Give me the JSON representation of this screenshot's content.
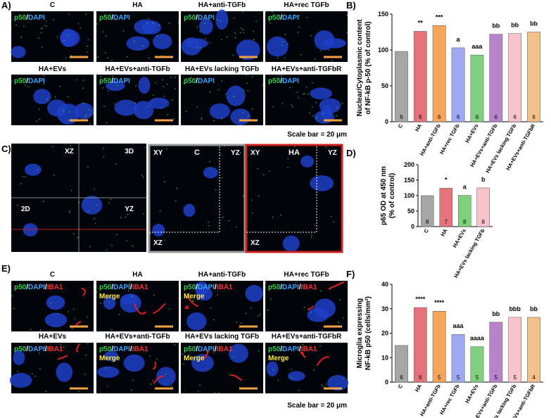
{
  "panels": {
    "a": "A)",
    "b": "B)",
    "c": "C)",
    "d": "D)",
    "e": "E)",
    "f": "F)"
  },
  "panel_a": {
    "titles": [
      "C",
      "HA",
      "HA+anti-TGFb",
      "HA+rec TGFb",
      "HA+EVs",
      "HA+EVs+anti-TGFb",
      "HA+EVs lacking TGFb",
      "HA+EVs+anti-TGFbR"
    ],
    "stain_parts": [
      {
        "text": "p50",
        "color": "#2fd24a"
      },
      {
        "text": "/",
        "color": "#ffffff"
      },
      {
        "text": "DAPI",
        "color": "#39a7ff"
      }
    ],
    "scale_bar": "Scale bar = 20 μm"
  },
  "panel_c": {
    "composite_labels": [
      "XZ",
      "3D",
      "2D",
      "YZ"
    ],
    "titles": [
      "C",
      "HA"
    ],
    "view_labels": [
      "XY",
      "YZ",
      "XZ"
    ]
  },
  "panel_e": {
    "titles": [
      "C",
      "HA",
      "HA+anti-TGFb",
      "HA+rec TGFb",
      "HA+EVs",
      "HA+EVs+anti-TGFb",
      "HA+EVs lacking TGFb",
      "HA+EVs+anti-TGFbR"
    ],
    "stain_parts": [
      {
        "text": "p50",
        "color": "#2fd24a"
      },
      {
        "text": "/",
        "color": "#ffffff"
      },
      {
        "text": "DAPI",
        "color": "#39a7ff"
      },
      {
        "text": "/",
        "color": "#ffffff"
      },
      {
        "text": "IBA1",
        "color": "#ff3030"
      }
    ],
    "merge": "Merge",
    "scale_bar": "Scale bar = 20 μm"
  },
  "chart_data": [
    {
      "type": "bar",
      "ylabel": [
        "Nuclear/Cytoplasmic content",
        "of NF-kB p-50 (% of control)"
      ],
      "categories": [
        "C",
        "HA",
        "HA+anti-TGFb",
        "HA+rec TGFb",
        "HA+EVs",
        "HA+EVs+anti-TGFb",
        "HA+EVs lacking TGFb",
        "HA+EVs+anti-TGFbR"
      ],
      "values": [
        98,
        126,
        134,
        103,
        93,
        122,
        123,
        125
      ],
      "colors": [
        "#a6a6a6",
        "#e8727a",
        "#f6a65a",
        "#9ea9f2",
        "#7fd07f",
        "#b784cc",
        "#f9c3cc",
        "#f3c089"
      ],
      "annotations": [
        null,
        "**",
        "***",
        "a",
        "aaa",
        "bb",
        "bb",
        "bb"
      ],
      "n": [
        6,
        6,
        6,
        6,
        6,
        6,
        6,
        6
      ],
      "ylim": [
        0,
        150
      ],
      "yticks": [
        0,
        50,
        100,
        150
      ]
    },
    {
      "type": "bar",
      "ylabel": [
        "p65 OD at 450 nm",
        "(% of control)"
      ],
      "categories": [
        "C",
        "HA",
        "HA+EVs",
        "HA+EVs lacking TGFb"
      ],
      "values": [
        100,
        124,
        101,
        125
      ],
      "colors": [
        "#a6a6a6",
        "#e8727a",
        "#7fd07f",
        "#f9c3cc"
      ],
      "annotations": [
        null,
        "*",
        "a",
        "b"
      ],
      "n": [
        8,
        7,
        8,
        8
      ],
      "ylim": [
        0,
        200
      ],
      "yticks": [
        0,
        50,
        100,
        150,
        200
      ]
    },
    {
      "type": "bar",
      "ylabel": [
        "Microglia expressing",
        "NF-kB p50 (cells/mm²)"
      ],
      "categories": [
        "C",
        "HA",
        "HA+anti-TGFb",
        "HA+rec TGFb",
        "HA+EVs",
        "HA+EVs+anti-TGFb",
        "HA+EVs lacking TGFb",
        "HA+EVs+anti-TGFbR"
      ],
      "values": [
        15,
        30.5,
        29,
        19.5,
        14.5,
        24.5,
        26.5,
        26.5
      ],
      "colors": [
        "#a6a6a6",
        "#e8727a",
        "#f6a65a",
        "#9ea9f2",
        "#7fd07f",
        "#b784cc",
        "#f9c3cc",
        "#f3c089"
      ],
      "annotations": [
        null,
        "****",
        "****",
        "aaa",
        "aaaa",
        "bb",
        "bbb",
        "bb"
      ],
      "n": [
        6,
        6,
        5,
        5,
        5,
        5,
        5,
        4
      ],
      "ylim": [
        0,
        40
      ],
      "yticks": [
        0,
        10,
        20,
        30,
        40
      ]
    }
  ]
}
